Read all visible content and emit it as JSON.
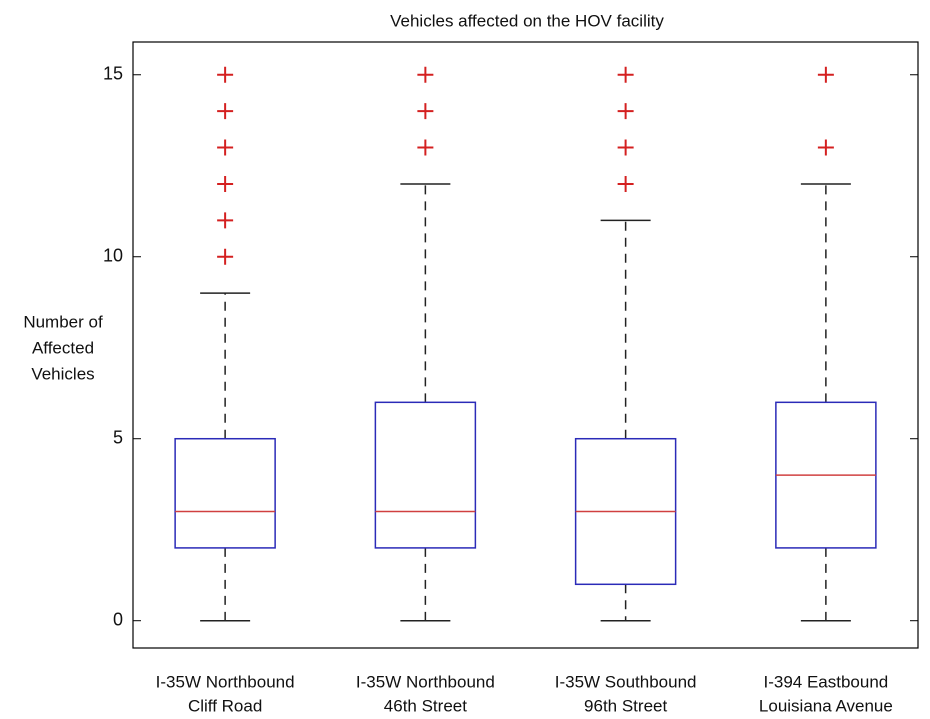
{
  "chart_data": {
    "type": "box",
    "title": "Vehicles affected on the HOV facility",
    "ylabel": [
      "Number of",
      "Affected",
      "Vehicles"
    ],
    "categories": [
      [
        "I-35W Northbound",
        "Cliff Road"
      ],
      [
        "I-35W Northbound",
        "46th Street"
      ],
      [
        "I-35W Southbound",
        "96th Street"
      ],
      [
        "I-394 Eastbound",
        "Louisiana Avenue"
      ]
    ],
    "boxes": [
      {
        "whisker_low": 0,
        "q1": 2,
        "median": 3,
        "q3": 5,
        "whisker_high": 9,
        "outliers": [
          10,
          11,
          12,
          13,
          14,
          15
        ]
      },
      {
        "whisker_low": 0,
        "q1": 2,
        "median": 3,
        "q3": 6,
        "whisker_high": 12,
        "outliers": [
          13,
          14,
          15
        ]
      },
      {
        "whisker_low": 0,
        "q1": 1,
        "median": 3,
        "q3": 5,
        "whisker_high": 11,
        "outliers": [
          12,
          13,
          14,
          15
        ]
      },
      {
        "whisker_low": 0,
        "q1": 2,
        "median": 4,
        "q3": 6,
        "whisker_high": 12,
        "outliers": [
          13,
          15
        ]
      }
    ],
    "box_color": "#2b2bb8",
    "median_color": "#d04040",
    "whisker_color": "#222222",
    "outlier_color": "#d42020",
    "ylim": [
      -0.75,
      15.9
    ],
    "yticks": [
      0,
      5,
      10,
      15
    ]
  }
}
